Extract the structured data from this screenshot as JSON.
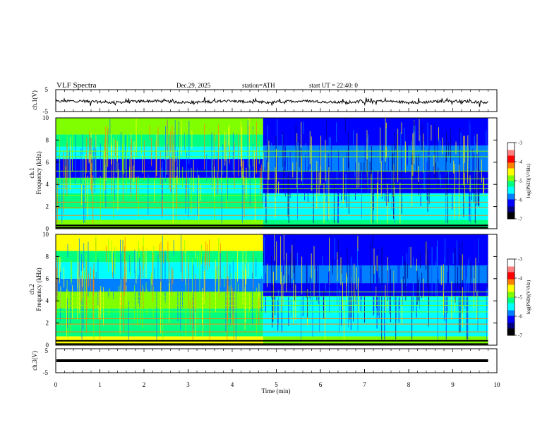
{
  "header": {
    "title": "VLF  Spectra",
    "date": "Dec.29, 2025",
    "station": "station=ATH",
    "start": "start  UT  =   22:40: 0"
  },
  "chart_data": [
    {
      "type": "line",
      "ylabel": "ch.1(V)",
      "ylim": [
        -5,
        5
      ],
      "yticks": [
        "5",
        "-5"
      ],
      "x_range": [
        0,
        9.8
      ],
      "description_value": "noise trace around -0.5 V",
      "center_value": -0.5
    },
    {
      "type": "heatmap",
      "channel": "ch.1",
      "ylabel": "Frequency  (kHz)",
      "ylim": [
        0,
        10
      ],
      "yticks": [
        "0",
        "2",
        "4",
        "6",
        "8",
        "10"
      ],
      "x_range": [
        0,
        9.8
      ],
      "transition_min": 4.7,
      "colorbar": {
        "label": "log(PSD)(V²/Hz)",
        "ticks": [
          "-3",
          "-4",
          "-5",
          "-6",
          "-7"
        ],
        "range": [
          -7,
          -3
        ]
      },
      "bands_khz": [
        0.1,
        0.3,
        1.2,
        1.9,
        2.4,
        3.0,
        3.6,
        4.0,
        4.5,
        5.2,
        6.5,
        7.0
      ]
    },
    {
      "type": "heatmap",
      "channel": "ch.2",
      "ylabel": "Frequency  (kHz)",
      "ylim": [
        0,
        10
      ],
      "yticks": [
        "0",
        "2",
        "4",
        "6",
        "8",
        "10"
      ],
      "x_range": [
        0,
        9.8
      ],
      "transition_min": 4.7,
      "colorbar": {
        "label": "log(PSD)(V²/Hz)",
        "ticks": [
          "-3",
          "-4",
          "-5",
          "-6",
          "-7"
        ],
        "range": [
          -7,
          -3
        ]
      },
      "bands_khz": [
        0.1,
        0.4,
        1.2,
        1.9,
        2.4,
        3.0,
        3.6,
        4.0,
        4.4,
        4.8
      ]
    },
    {
      "type": "line",
      "ylabel": "ch.3(V)",
      "ylim": [
        -5,
        5
      ],
      "yticks": [
        "5",
        "-5"
      ],
      "x_range": [
        0,
        9.8
      ],
      "center_value": 0
    }
  ],
  "xaxis": {
    "label": "Time  (min)",
    "ticks": [
      "0",
      "1",
      "2",
      "3",
      "4",
      "5",
      "6",
      "7",
      "8",
      "9",
      "10"
    ],
    "range": [
      0,
      10
    ]
  },
  "colors": {
    "spectrum": [
      "#000080",
      "#0000ff",
      "#0080ff",
      "#00ffff",
      "#00ff80",
      "#80ff00",
      "#ffff00",
      "#ff8000",
      "#ff0000",
      "#ffffff"
    ]
  }
}
